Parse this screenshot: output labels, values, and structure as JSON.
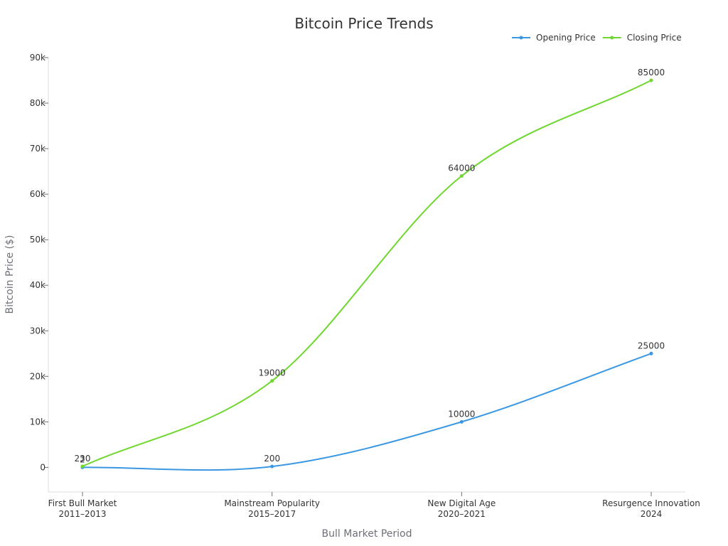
{
  "chart_data": {
    "type": "line",
    "title": "Bitcoin Price Trends",
    "xlabel": "Bull Market Period",
    "ylabel": "Bitcoin Price ($)",
    "categories": [
      [
        "First Bull Market",
        "2011–2013"
      ],
      [
        "Mainstream Popularity",
        "2015–2017"
      ],
      [
        "New Digital Age",
        "2020–2021"
      ],
      [
        "Resurgence Innovation",
        "2024"
      ]
    ],
    "ylim": [
      -5400,
      90000
    ],
    "yticks": [
      0,
      10000,
      20000,
      30000,
      40000,
      50000,
      60000,
      70000,
      80000,
      90000
    ],
    "ytick_labels": [
      "0",
      "10k",
      "20k",
      "30k",
      "40k",
      "50k",
      "60k",
      "70k",
      "80k",
      "90k"
    ],
    "legend_position": "top-right",
    "grid": false,
    "smooth": true,
    "series": [
      {
        "name": "Opening Price",
        "color": "#3a97e3",
        "values": [
          2,
          200,
          10000,
          25000
        ],
        "labels": [
          "2",
          "200",
          "10000",
          "25000"
        ]
      },
      {
        "name": "Closing Price",
        "color": "#6fd730",
        "values": [
          230,
          19000,
          64000,
          85000
        ],
        "labels": [
          "230",
          "19000",
          "64000",
          "85000"
        ]
      }
    ]
  }
}
